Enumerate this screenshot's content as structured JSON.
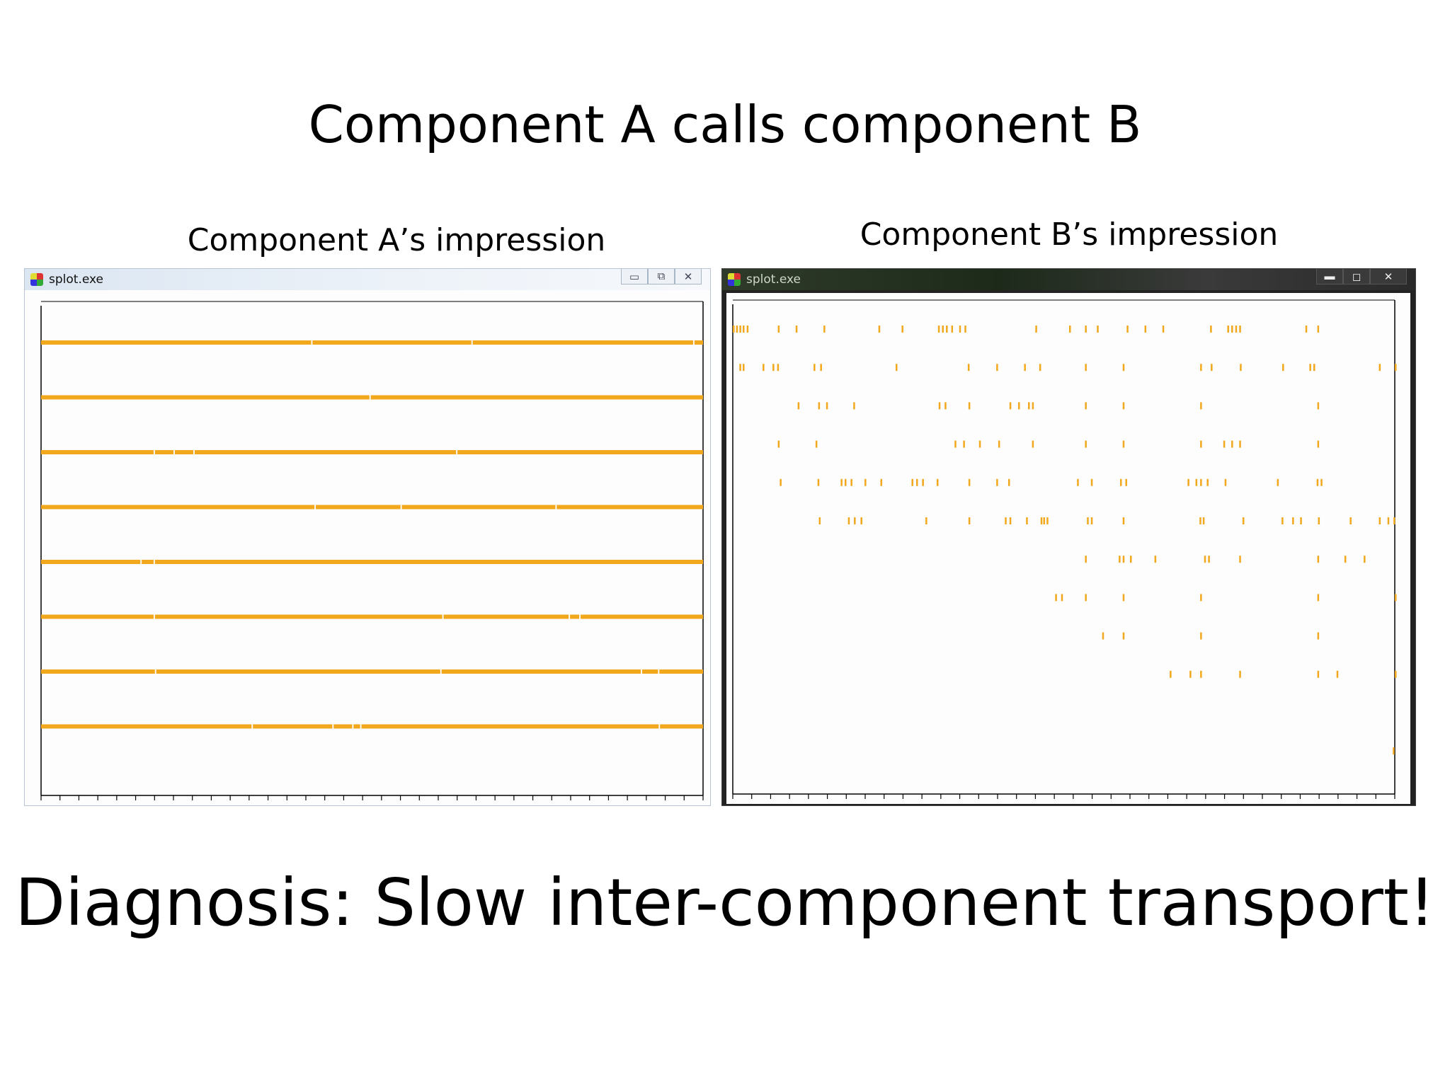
{
  "slide": {
    "title": "Component A calls component B",
    "footer": "Diagnosis: Slow inter-component transport!"
  },
  "window_a": {
    "caption": "Component A’s impression",
    "title": "splot.exe",
    "icons": {
      "app": "app-icon",
      "minimize": "minimize-icon",
      "maximize": "maximize-icon",
      "close": "close-icon"
    },
    "minimize_glyph": "▭",
    "maximize_glyph": "⧉",
    "close_glyph": "✕"
  },
  "window_b": {
    "caption": "Component B’s impression",
    "title": "splot.exe",
    "icons": {
      "app": "app-icon",
      "minimize": "minimize-icon",
      "maximize": "maximize-icon",
      "close": "close-icon"
    },
    "minimize_glyph": "▬",
    "maximize_glyph": "◻",
    "close_glyph": "✕"
  },
  "chart_data": [
    {
      "type": "timeline",
      "description_color": "#f2a81d",
      "xlim": [
        0,
        1
      ],
      "row_count": 8,
      "tick_count": 35,
      "rows": [
        {
          "segments": [
            [
              0.0,
              0.408
            ],
            [
              0.41,
              0.65
            ],
            [
              0.652,
              0.985
            ],
            [
              0.987,
              1.0
            ]
          ]
        },
        {
          "segments": [
            [
              0.0,
              0.496
            ],
            [
              0.498,
              1.0
            ]
          ]
        },
        {
          "segments": [
            [
              0.0,
              0.17
            ],
            [
              0.172,
              0.2
            ],
            [
              0.202,
              0.23
            ],
            [
              0.232,
              0.627
            ],
            [
              0.629,
              1.0
            ]
          ]
        },
        {
          "segments": [
            [
              0.0,
              0.413
            ],
            [
              0.415,
              0.543
            ],
            [
              0.545,
              0.777
            ],
            [
              0.779,
              1.0
            ]
          ]
        },
        {
          "segments": [
            [
              0.0,
              0.15
            ],
            [
              0.152,
              0.17
            ],
            [
              0.172,
              1.0
            ]
          ]
        },
        {
          "segments": [
            [
              0.0,
              0.17
            ],
            [
              0.172,
              0.606
            ],
            [
              0.608,
              0.797
            ],
            [
              0.799,
              0.813
            ],
            [
              0.815,
              1.0
            ]
          ]
        },
        {
          "segments": [
            [
              0.0,
              0.172
            ],
            [
              0.174,
              0.603
            ],
            [
              0.605,
              0.906
            ],
            [
              0.908,
              0.932
            ],
            [
              0.934,
              1.0
            ]
          ]
        },
        {
          "segments": [
            [
              0.0,
              0.318
            ],
            [
              0.32,
              0.44
            ],
            [
              0.442,
              0.47
            ],
            [
              0.472,
              0.482
            ],
            [
              0.484,
              0.933
            ],
            [
              0.935,
              1.0
            ]
          ]
        }
      ]
    },
    {
      "type": "timeline",
      "description_color": "#f2a81d",
      "xlim": [
        0,
        1
      ],
      "row_count": 12,
      "tick_count": 35,
      "rows": [
        {
          "marks": [
            0.0,
            0.005,
            0.01,
            0.015,
            0.021,
            0.068,
            0.095,
            0.137,
            0.22,
            0.255,
            0.31,
            0.316,
            0.322,
            0.33,
            0.342,
            0.35,
            0.457,
            0.508,
            0.532,
            0.55,
            0.595,
            0.622,
            0.649,
            0.721,
            0.747,
            0.753,
            0.759,
            0.765,
            0.865,
            0.883
          ]
        },
        {
          "marks": [
            0.01,
            0.015,
            0.045,
            0.06,
            0.067,
            0.122,
            0.132,
            0.246,
            0.355,
            0.398,
            0.44,
            0.463,
            0.532,
            0.589,
            0.706,
            0.722,
            0.766,
            0.83,
            0.871,
            0.877,
            0.976,
            1.0
          ]
        },
        {
          "marks": [
            0.098,
            0.129,
            0.141,
            0.182,
            0.311,
            0.32,
            0.356,
            0.418,
            0.431,
            0.446,
            0.452,
            0.532,
            0.589,
            0.706,
            0.883
          ]
        },
        {
          "marks": [
            0.068,
            0.125,
            0.335,
            0.348,
            0.372,
            0.401,
            0.452,
            0.532,
            0.589,
            0.706,
            0.741,
            0.753,
            0.765,
            0.883
          ]
        },
        {
          "marks": [
            0.071,
            0.128,
            0.163,
            0.169,
            0.178,
            0.199,
            0.223,
            0.27,
            0.277,
            0.286,
            0.308,
            0.356,
            0.398,
            0.416,
            0.52,
            0.541,
            0.585,
            0.593,
            0.687,
            0.699,
            0.706,
            0.716,
            0.743,
            0.822,
            0.882,
            0.888
          ]
        },
        {
          "marks": [
            0.13,
            0.174,
            0.183,
            0.193,
            0.291,
            0.356,
            0.411,
            0.418,
            0.443,
            0.465,
            0.469,
            0.474,
            0.535,
            0.541,
            0.589,
            0.705,
            0.71,
            0.77,
            0.829,
            0.845,
            0.857,
            0.884,
            0.932,
            0.976,
            0.989,
            0.998
          ]
        },
        {
          "marks": [
            0.532,
            0.583,
            0.589,
            0.6,
            0.637,
            0.712,
            0.718,
            0.765,
            0.883,
            0.924,
            0.953
          ]
        },
        {
          "marks": [
            0.487,
            0.496,
            0.532,
            0.589,
            0.706,
            0.883,
            1.0
          ]
        },
        {
          "marks": [
            0.558,
            0.589,
            0.706,
            0.883
          ]
        },
        {
          "marks": [
            0.66,
            0.69,
            0.706,
            0.765,
            0.883,
            0.912,
            1.0
          ]
        },
        {
          "marks": []
        },
        {
          "marks": [
            0.997
          ]
        }
      ]
    }
  ]
}
